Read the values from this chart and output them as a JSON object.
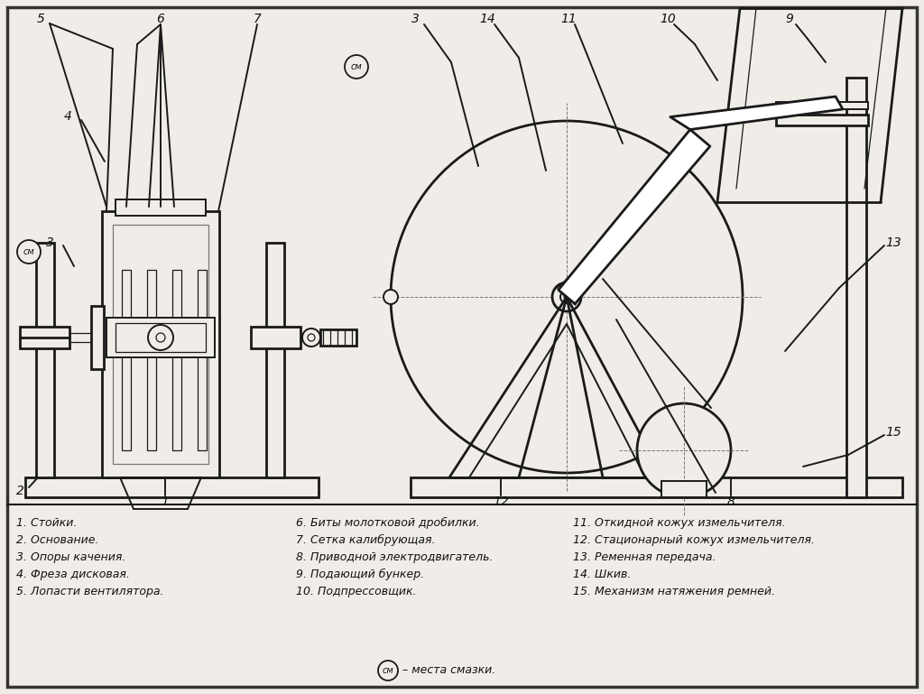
{
  "bg_color": "#f0ede8",
  "border_color": "#222222",
  "line_color": "#1a1a1a",
  "dashed_color": "#777777",
  "legend_items": [
    "1. Стойки.",
    "2. Основание.",
    "3. Опоры качения.",
    "4. Фреза дисковая.",
    "5. Лопасти вентилятора.",
    "6. Биты молотковой дробилки.",
    "7. Сетка калибрующая.",
    "8. Приводной электродвигатель.",
    "9. Подающий бункер.",
    "10. Подпрессовщик.",
    "11. Откидной кожух измельчителя.",
    "12. Стационарный кожух измельчителя.",
    "13. Ременная передача.",
    "14. Шкив.",
    "15. Механизм натяжения ремней."
  ],
  "sm_label": "см",
  "sm_note": " – места смазки."
}
